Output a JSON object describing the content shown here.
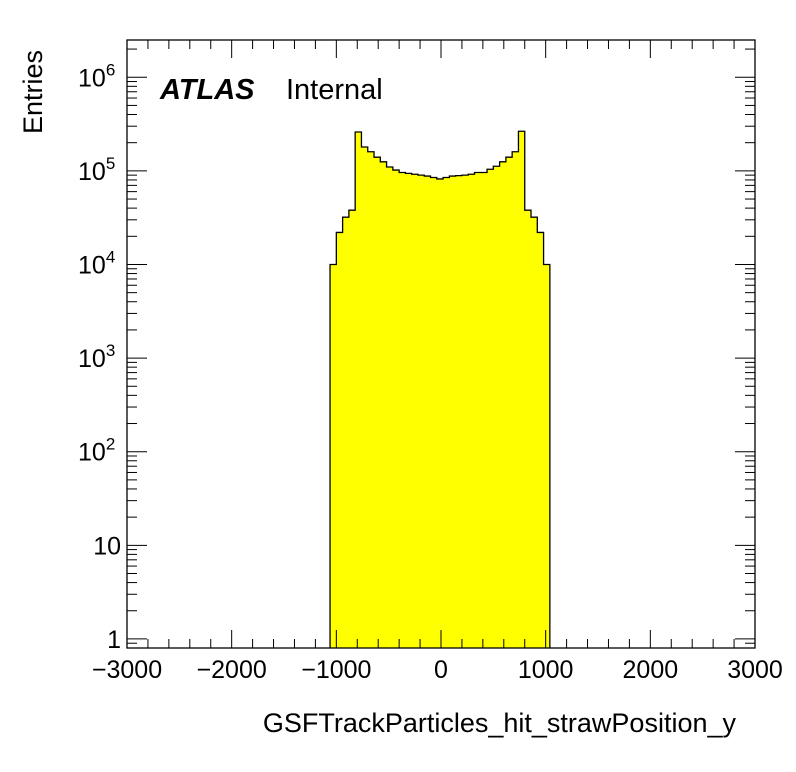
{
  "chart_data": {
    "type": "histogram",
    "xlabel": "GSFTrackParticles_hit_strawPosition_y",
    "ylabel": "Entries",
    "xlim": [
      -3000,
      3000
    ],
    "ylim": [
      0.8,
      2500000
    ],
    "yscale": "log",
    "x_ticks": [
      "−3000",
      "−2000",
      "−1000",
      "0",
      "1000",
      "2000",
      "3000"
    ],
    "y_ticks": [
      "1",
      "10",
      "10",
      "10",
      "10",
      "10",
      "10"
    ],
    "y_tick_exponents": [
      "",
      "",
      "2",
      "3",
      "4",
      "5",
      "6"
    ],
    "fill_color": "#ffff00",
    "line_color": "#000000",
    "bin_width": 60,
    "bins": [
      {
        "x0": -1060,
        "value": 10000
      },
      {
        "x0": -1000,
        "value": 22000
      },
      {
        "x0": -940,
        "value": 32000
      },
      {
        "x0": -880,
        "value": 38000
      },
      {
        "x0": -820,
        "value": 260000
      },
      {
        "x0": -760,
        "value": 180000
      },
      {
        "x0": -700,
        "value": 160000
      },
      {
        "x0": -640,
        "value": 140000
      },
      {
        "x0": -580,
        "value": 125000
      },
      {
        "x0": -520,
        "value": 110000
      },
      {
        "x0": -460,
        "value": 102000
      },
      {
        "x0": -400,
        "value": 96000
      },
      {
        "x0": -340,
        "value": 94000
      },
      {
        "x0": -280,
        "value": 92000
      },
      {
        "x0": -220,
        "value": 90000
      },
      {
        "x0": -160,
        "value": 88000
      },
      {
        "x0": -100,
        "value": 85000
      },
      {
        "x0": -40,
        "value": 82000
      },
      {
        "x0": 20,
        "value": 85000
      },
      {
        "x0": 80,
        "value": 88000
      },
      {
        "x0": 140,
        "value": 89000
      },
      {
        "x0": 200,
        "value": 90000
      },
      {
        "x0": 260,
        "value": 92000
      },
      {
        "x0": 320,
        "value": 96000
      },
      {
        "x0": 380,
        "value": 96000
      },
      {
        "x0": 440,
        "value": 104000
      },
      {
        "x0": 500,
        "value": 112000
      },
      {
        "x0": 560,
        "value": 125000
      },
      {
        "x0": 620,
        "value": 140000
      },
      {
        "x0": 680,
        "value": 160000
      },
      {
        "x0": 740,
        "value": 265000
      },
      {
        "x0": 800,
        "value": 38000
      },
      {
        "x0": 860,
        "value": 32000
      },
      {
        "x0": 920,
        "value": 22000
      },
      {
        "x0": 980,
        "value": 10000
      }
    ]
  },
  "label": {
    "atlas": "ATLAS",
    "status": "Internal"
  }
}
